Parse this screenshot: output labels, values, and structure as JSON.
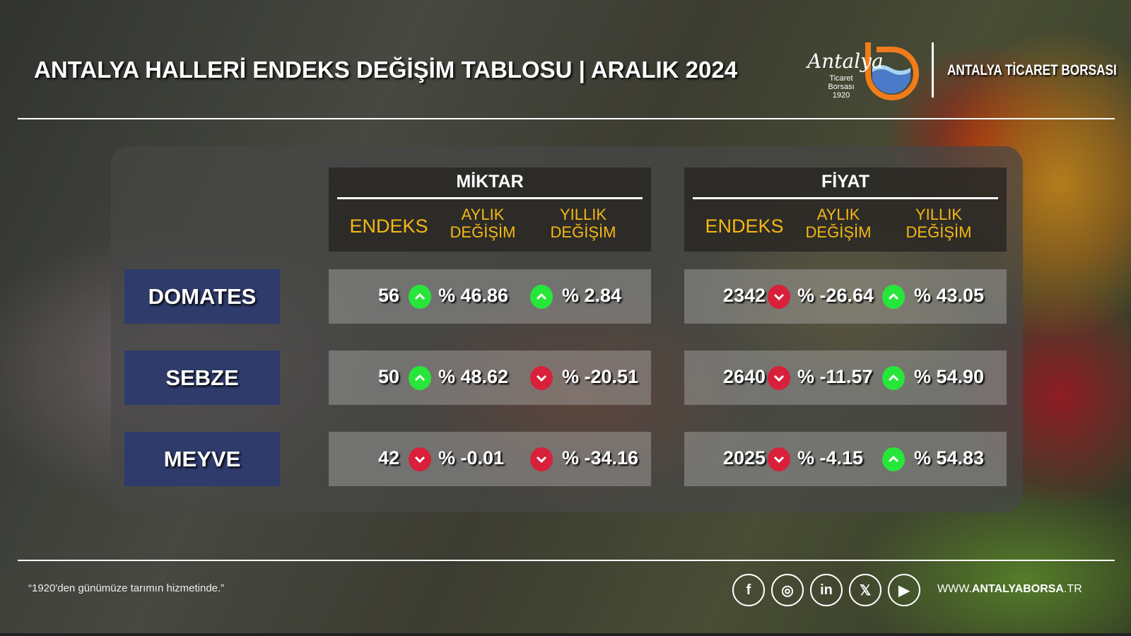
{
  "header": {
    "title": "ANTALYA HALLERİ ENDEKS DEĞİŞİM TABLOSU | ARALIK 2024",
    "organization": "ANTALYA TİCARET BORSASI",
    "logo": {
      "script": "Antalya",
      "lines": [
        "Ticaret",
        "Borsası",
        "1920"
      ]
    }
  },
  "groups": [
    {
      "title": "MİKTAR",
      "columns": [
        "ENDEKS",
        "AYLIK DEĞİŞİM",
        "YILLIK DEĞİŞİM"
      ]
    },
    {
      "title": "FİYAT",
      "columns": [
        "ENDEKS",
        "AYLIK DEĞİŞİM",
        "YILLIK DEĞİŞİM"
      ]
    }
  ],
  "rows": [
    {
      "label": "DOMATES",
      "miktar": {
        "endeks": "56",
        "aylik": "% 46.86",
        "aylik_dir": "up",
        "yillik": "%  2.84",
        "yillik_dir": "up"
      },
      "fiyat": {
        "endeks": "2342",
        "aylik": "% -26.64",
        "aylik_dir": "down",
        "yillik": "% 43.05",
        "yillik_dir": "up"
      }
    },
    {
      "label": "SEBZE",
      "miktar": {
        "endeks": "50",
        "aylik": "% 48.62",
        "aylik_dir": "up",
        "yillik": "% -20.51",
        "yillik_dir": "down"
      },
      "fiyat": {
        "endeks": "2640",
        "aylik": "% -11.57",
        "aylik_dir": "down",
        "yillik": "% 54.90",
        "yillik_dir": "up"
      }
    },
    {
      "label": "MEYVE",
      "miktar": {
        "endeks": "42",
        "aylik": "% -0.01",
        "aylik_dir": "down",
        "yillik": "% -34.16",
        "yillik_dir": "down"
      },
      "fiyat": {
        "endeks": "2025",
        "aylik": "% -4.15",
        "aylik_dir": "down",
        "yillik": "% 54.83",
        "yillik_dir": "up"
      }
    }
  ],
  "colors": {
    "up": "#27e63a",
    "down": "#d8203a",
    "label_bg": "#2e3b6b",
    "subheader": "#f5b814"
  },
  "footer": {
    "quote": "“1920'den günümüze tarımın hizmetinde.”",
    "social": [
      "facebook",
      "instagram",
      "linkedin",
      "x",
      "youtube"
    ],
    "web_prefix": "WWW.",
    "web_bold": "ANTALYABORSA",
    "web_suffix": ".TR"
  }
}
